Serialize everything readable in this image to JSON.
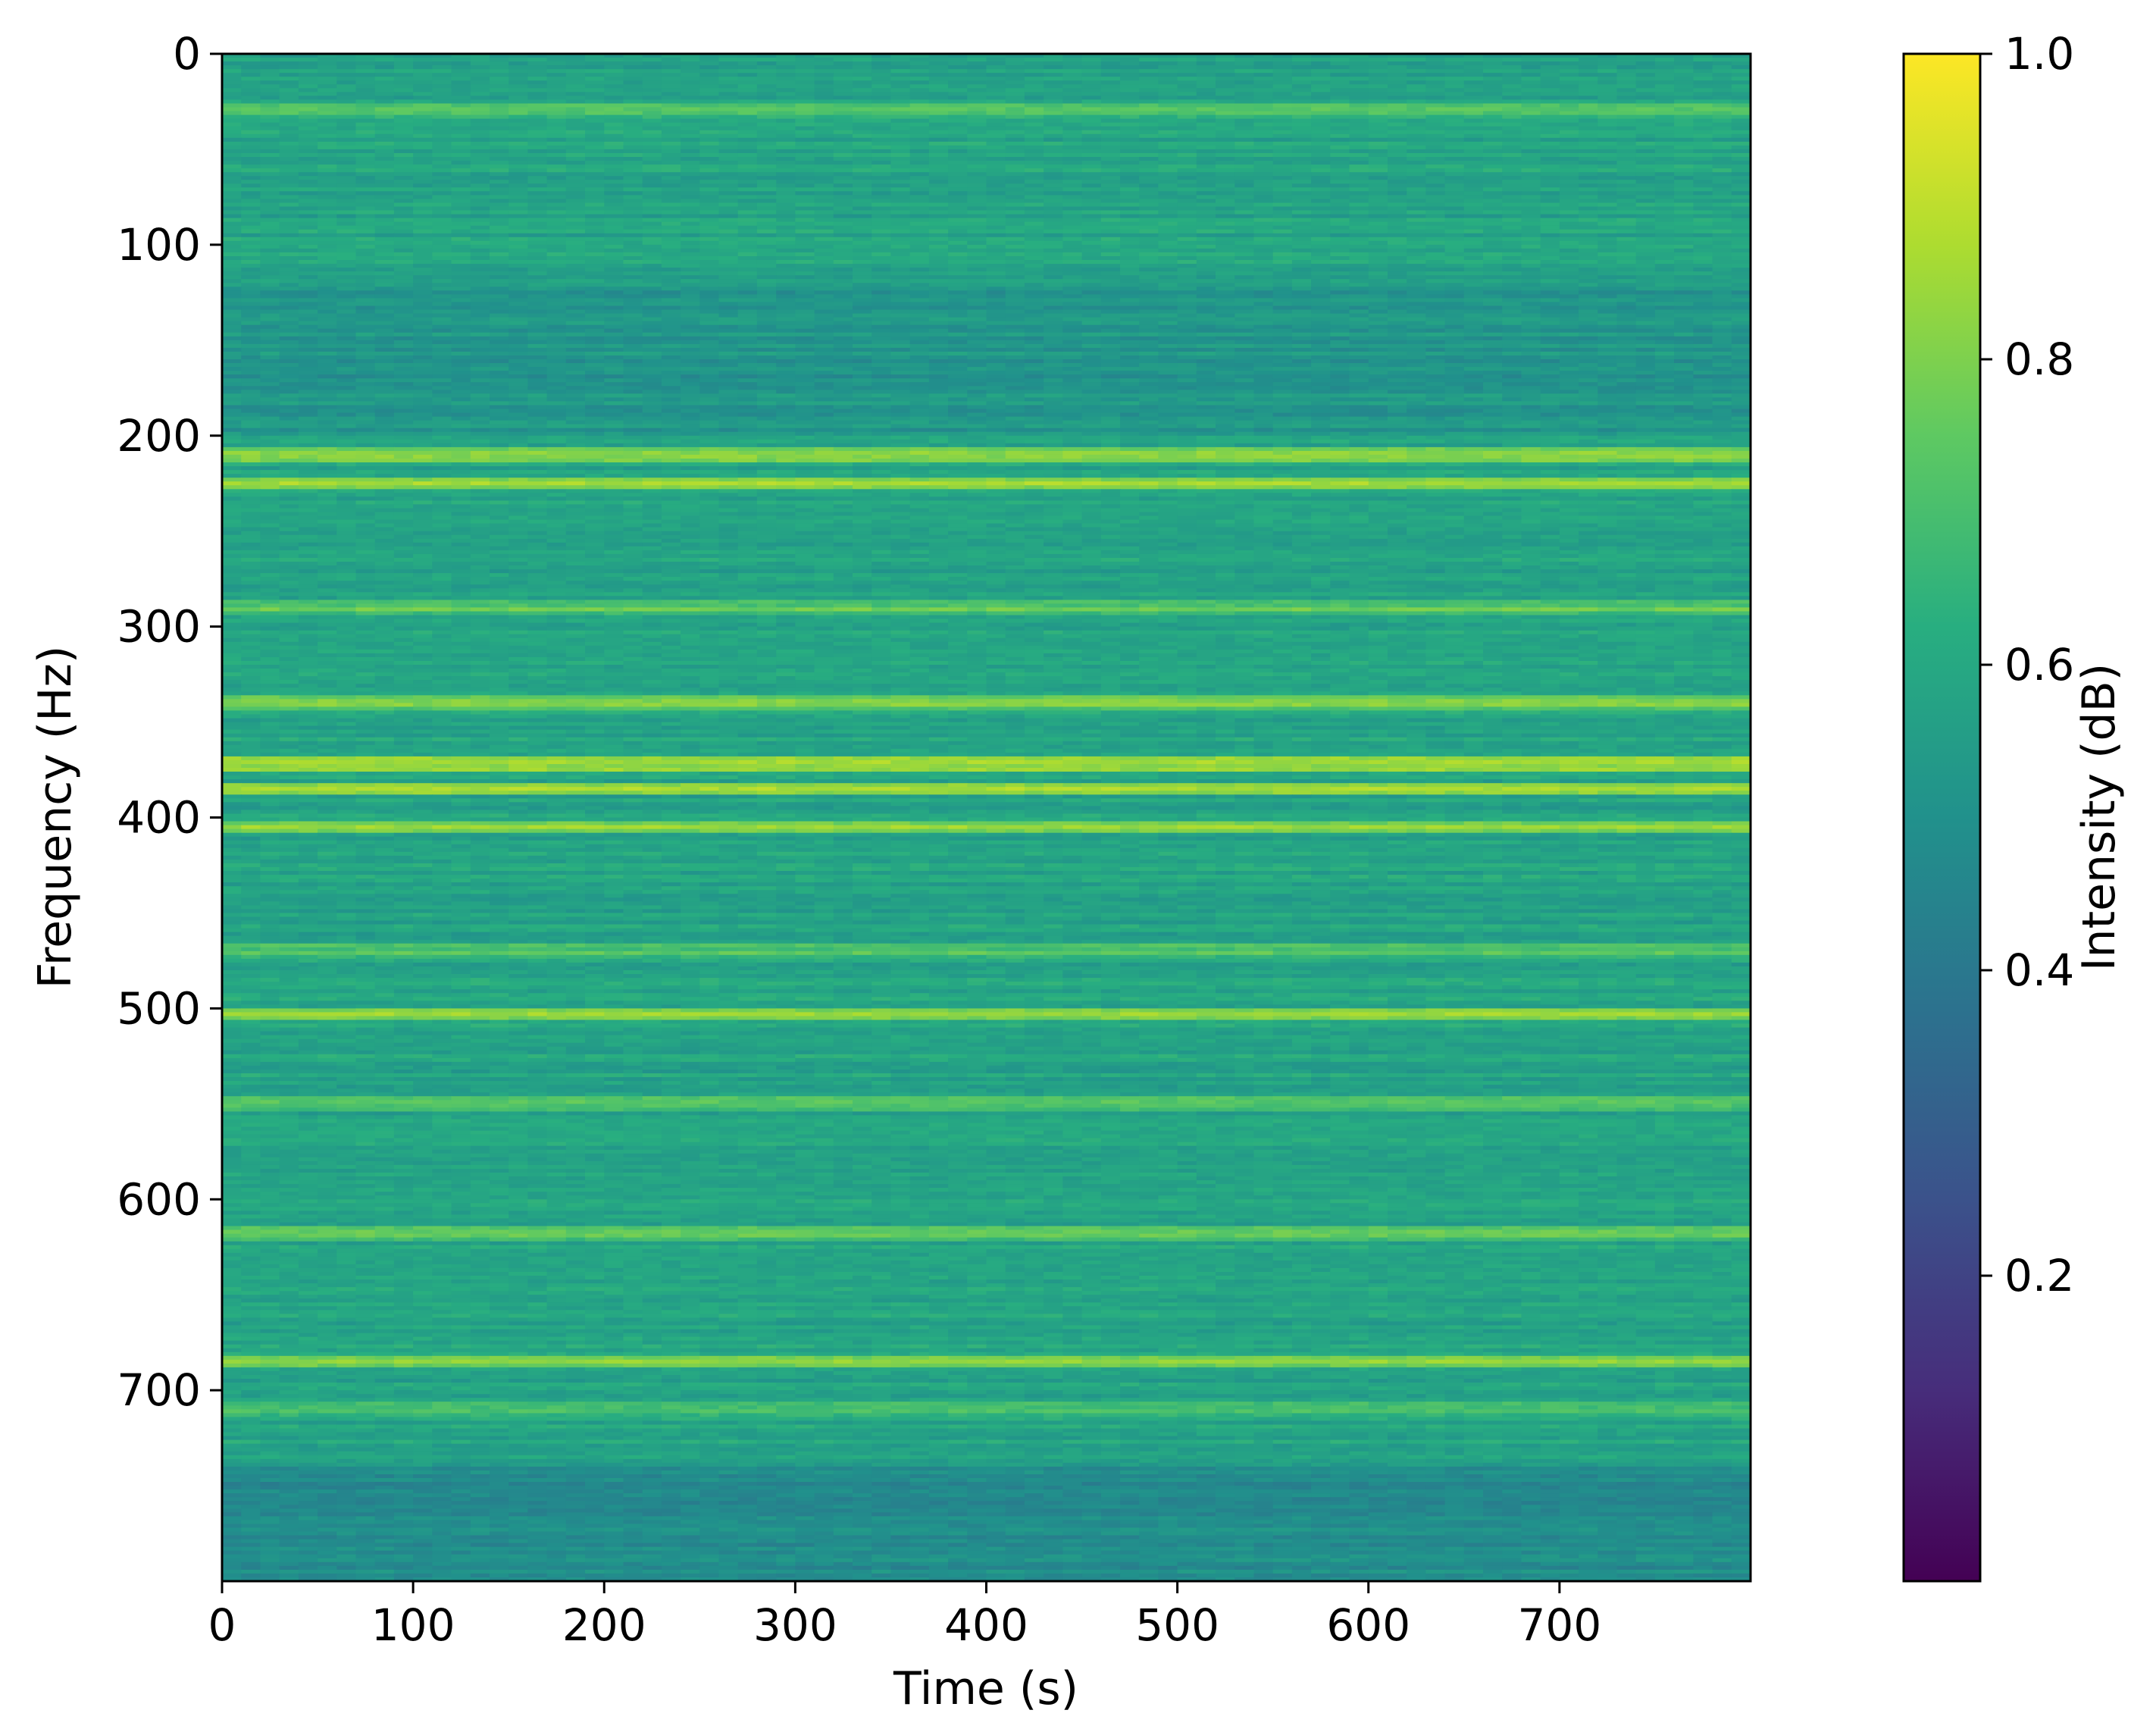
{
  "chart_data": {
    "type": "heatmap",
    "title": "",
    "xlabel": "Time (s)",
    "ylabel": "Frequency (Hz)",
    "colorbar_label": "Intensity (dB)",
    "colormap": "viridis",
    "x_range": [
      0,
      800
    ],
    "y_range": [
      0,
      800
    ],
    "y_inverted": true,
    "x_ticks": [
      0,
      100,
      200,
      300,
      400,
      500,
      600,
      700
    ],
    "x_tick_labels": [
      "0",
      "100",
      "200",
      "300",
      "400",
      "500",
      "600",
      "700"
    ],
    "y_ticks": [
      0,
      100,
      200,
      300,
      400,
      500,
      600,
      700
    ],
    "y_tick_labels": [
      "0",
      "100",
      "200",
      "300",
      "400",
      "500",
      "600",
      "700"
    ],
    "colorbar_range": [
      0.0,
      1.0
    ],
    "colorbar_ticks": [
      0.2,
      0.4,
      0.6,
      0.8,
      1.0
    ],
    "colorbar_tick_labels": [
      "0.2",
      "0.4",
      "0.6",
      "0.8",
      "1.0"
    ],
    "background_level": 0.58,
    "bands": [
      {
        "frequency": 30,
        "intensity": 0.74
      },
      {
        "frequency": 210,
        "intensity": 0.84
      },
      {
        "frequency": 225,
        "intensity": 0.84
      },
      {
        "frequency": 290,
        "intensity": 0.76
      },
      {
        "frequency": 340,
        "intensity": 0.8
      },
      {
        "frequency": 372,
        "intensity": 0.88
      },
      {
        "frequency": 385,
        "intensity": 0.85
      },
      {
        "frequency": 405,
        "intensity": 0.84
      },
      {
        "frequency": 470,
        "intensity": 0.74
      },
      {
        "frequency": 503,
        "intensity": 0.82
      },
      {
        "frequency": 550,
        "intensity": 0.76
      },
      {
        "frequency": 618,
        "intensity": 0.78
      },
      {
        "frequency": 685,
        "intensity": 0.8
      },
      {
        "frequency": 710,
        "intensity": 0.74
      }
    ],
    "low_regions": [
      {
        "frequency_from": 120,
        "frequency_to": 200,
        "intensity": 0.52
      },
      {
        "frequency_from": 740,
        "frequency_to": 800,
        "intensity": 0.48
      }
    ],
    "grid": false
  }
}
